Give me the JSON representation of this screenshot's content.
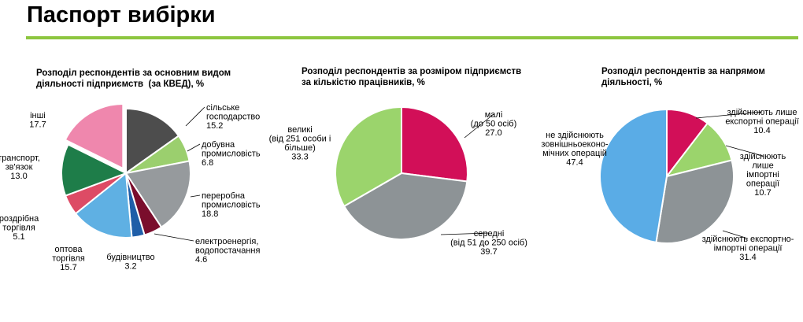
{
  "page_title": "Паспорт вибірки",
  "colors": {
    "accent_rule": "#8dc63f"
  },
  "chart_data": [
    {
      "type": "pie",
      "title_lines": [
        "Розподіл респондентів за основним видом",
        "діяльності підприємств  (за КВЕД), %"
      ],
      "unit": "%",
      "slices": [
        {
          "label_lines": [
            "сільське",
            "господарство"
          ],
          "value": 15.2,
          "value_text": "15.2",
          "color": "#4d4d4d"
        },
        {
          "label_lines": [
            "добувна",
            "промисловість"
          ],
          "value": 6.8,
          "value_text": "6.8",
          "color": "#9bcf6e"
        },
        {
          "label_lines": [
            "переробна",
            "промисловість"
          ],
          "value": 18.8,
          "value_text": "18.8",
          "color": "#969a9d"
        },
        {
          "label_lines": [
            "електроенергія,",
            "водопостачання"
          ],
          "value": 4.6,
          "value_text": "4.6",
          "color": "#7a0d2c"
        },
        {
          "label_lines": [
            "будівництво"
          ],
          "value": 3.2,
          "value_text": "3.2",
          "color": "#1f5ea8"
        },
        {
          "label_lines": [
            "оптова",
            "торгівля"
          ],
          "value": 15.7,
          "value_text": "15.7",
          "color": "#5fb0e3"
        },
        {
          "label_lines": [
            "роздрібна",
            "торгівля"
          ],
          "value": 5.1,
          "value_text": "5.1",
          "color": "#dd4b65"
        },
        {
          "label_lines": [
            "транспорт,",
            "зв'язок"
          ],
          "value": 13.0,
          "value_text": "13.0",
          "color": "#1e7d49"
        },
        {
          "label_lines": [
            "інші"
          ],
          "value": 17.7,
          "value_text": "17.7",
          "color": "#ef87ad"
        }
      ]
    },
    {
      "type": "pie",
      "title_lines": [
        "Розподіл респондентів за розміром підприємств",
        "за кількістю працівників, %"
      ],
      "unit": "%",
      "slices": [
        {
          "label_lines": [
            "малі",
            "(до 50 осіб)"
          ],
          "value": 27.0,
          "value_text": "27.0",
          "color": "#d20f58"
        },
        {
          "label_lines": [
            "середні",
            "(від 51 до 250 осіб)"
          ],
          "value": 39.7,
          "value_text": "39.7",
          "color": "#8d9396"
        },
        {
          "label_lines": [
            "великі",
            "(від 251 особи і",
            "більше)"
          ],
          "value": 33.3,
          "value_text": "33.3",
          "color": "#9bd46c"
        }
      ]
    },
    {
      "type": "pie",
      "title_lines": [
        "Розподіл респондентів за напрямом",
        "діяльності, %"
      ],
      "unit": "%",
      "slices": [
        {
          "label_lines": [
            "здійснюють лише",
            "експортні операції"
          ],
          "value": 10.4,
          "value_text": "10.4",
          "color": "#d20f58"
        },
        {
          "label_lines": [
            "здійснюють",
            "лише",
            "імпортні",
            "операції"
          ],
          "value": 10.7,
          "value_text": "10.7",
          "color": "#9bd46c"
        },
        {
          "label_lines": [
            "здійснюють експортно-",
            "імпортні операції"
          ],
          "value": 31.4,
          "value_text": "31.4",
          "color": "#8d9396"
        },
        {
          "label_lines": [
            "не здійснюють",
            "зовнішньоеконо-",
            "мічних операцій"
          ],
          "value": 47.4,
          "value_text": "47.4",
          "color": "#5aace6"
        }
      ]
    }
  ]
}
